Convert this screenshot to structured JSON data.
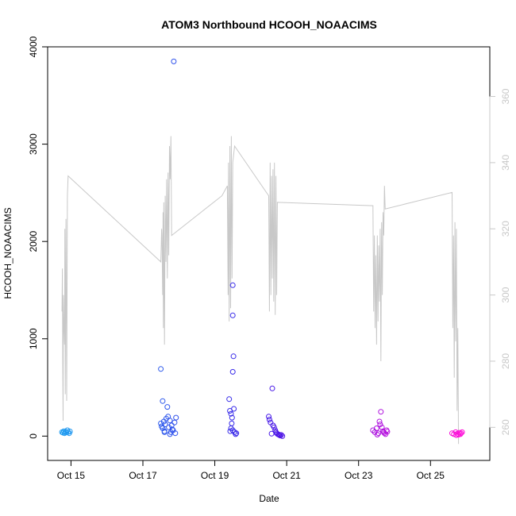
{
  "chart_data": {
    "type": "scatter",
    "title": "ATOM3 Northbound HCOOH_NOAACIMS",
    "xlabel": "Date",
    "ylabel": "HCOOH_NOAACIMS",
    "x_ticks": [
      {
        "label": "Oct 15",
        "day": 15
      },
      {
        "label": "Oct 17",
        "day": 17
      },
      {
        "label": "Oct 19",
        "day": 19
      },
      {
        "label": "Oct 21",
        "day": 21
      },
      {
        "label": "Oct 23",
        "day": 23
      },
      {
        "label": "Oct 25",
        "day": 25
      }
    ],
    "xlim": [
      14.35,
      26.65
    ],
    "ylim": [
      -250,
      4000
    ],
    "y_ticks": [
      0,
      1000,
      2000,
      3000,
      4000
    ],
    "y2lim": [
      250,
      375
    ],
    "y2_ticks": [
      260,
      280,
      300,
      320,
      340,
      360
    ],
    "grid": false,
    "scatter_colors": {
      "start": "#1e9cf0",
      "mid": "#3d17e8",
      "end": "#ff10d8"
    },
    "line_color": "#c8c8c8",
    "series": [
      {
        "kind": "scatter",
        "points": [
          [
            14.75,
            40
          ],
          [
            14.78,
            35
          ],
          [
            14.8,
            50
          ],
          [
            14.82,
            30
          ],
          [
            14.85,
            45
          ],
          [
            14.87,
            38
          ],
          [
            14.9,
            60
          ],
          [
            14.92,
            42
          ],
          [
            14.95,
            30
          ],
          [
            14.97,
            48
          ],
          [
            17.5,
            690
          ],
          [
            17.55,
            360
          ],
          [
            17.5,
            130
          ],
          [
            17.52,
            100
          ],
          [
            17.55,
            80
          ],
          [
            17.58,
            150
          ],
          [
            17.6,
            50
          ],
          [
            17.62,
            120
          ],
          [
            17.65,
            180
          ],
          [
            17.68,
            300
          ],
          [
            17.7,
            200
          ],
          [
            17.72,
            90
          ],
          [
            17.75,
            160
          ],
          [
            17.78,
            40
          ],
          [
            17.8,
            110
          ],
          [
            17.82,
            70
          ],
          [
            17.84,
            60
          ],
          [
            17.86,
            3850
          ],
          [
            17.88,
            140
          ],
          [
            17.9,
            30
          ],
          [
            17.92,
            190
          ],
          [
            17.75,
            20
          ],
          [
            17.6,
            40
          ],
          [
            19.4,
            380
          ],
          [
            19.42,
            260
          ],
          [
            19.45,
            230
          ],
          [
            19.48,
            190
          ],
          [
            19.5,
            1550
          ],
          [
            19.5,
            1240
          ],
          [
            19.52,
            820
          ],
          [
            19.5,
            660
          ],
          [
            19.53,
            280
          ],
          [
            19.47,
            130
          ],
          [
            19.45,
            80
          ],
          [
            19.5,
            60
          ],
          [
            19.55,
            40
          ],
          [
            19.58,
            20
          ],
          [
            19.6,
            30
          ],
          [
            19.43,
            50
          ],
          [
            20.5,
            200
          ],
          [
            20.52,
            170
          ],
          [
            20.55,
            140
          ],
          [
            20.6,
            490
          ],
          [
            20.62,
            110
          ],
          [
            20.65,
            90
          ],
          [
            20.68,
            60
          ],
          [
            20.7,
            40
          ],
          [
            20.72,
            30
          ],
          [
            20.75,
            20
          ],
          [
            20.78,
            15
          ],
          [
            20.8,
            10
          ],
          [
            20.82,
            5
          ],
          [
            20.85,
            12
          ],
          [
            20.88,
            0
          ],
          [
            20.58,
            25
          ],
          [
            23.4,
            60
          ],
          [
            23.45,
            40
          ],
          [
            23.5,
            80
          ],
          [
            23.55,
            30
          ],
          [
            23.6,
            120
          ],
          [
            23.62,
            250
          ],
          [
            23.65,
            90
          ],
          [
            23.68,
            50
          ],
          [
            23.7,
            40
          ],
          [
            23.72,
            30
          ],
          [
            23.75,
            20
          ],
          [
            23.78,
            60
          ],
          [
            23.8,
            45
          ],
          [
            23.58,
            150
          ],
          [
            23.52,
            15
          ],
          [
            25.6,
            30
          ],
          [
            25.65,
            20
          ],
          [
            25.7,
            40
          ],
          [
            25.72,
            10
          ],
          [
            25.75,
            25
          ],
          [
            25.78,
            15
          ],
          [
            25.8,
            35
          ],
          [
            25.83,
            20
          ],
          [
            25.85,
            30
          ],
          [
            25.88,
            40
          ]
        ]
      },
      {
        "kind": "line",
        "axis": "right",
        "points": [
          [
            14.75,
            295
          ],
          [
            14.76,
            308
          ],
          [
            14.77,
            280
          ],
          [
            14.78,
            262
          ],
          [
            14.79,
            300
          ],
          [
            14.8,
            292
          ],
          [
            14.82,
            285
          ],
          [
            14.83,
            320
          ],
          [
            14.84,
            270
          ],
          [
            14.86,
            323
          ],
          [
            14.88,
            268
          ],
          [
            14.9,
            330
          ],
          [
            14.92,
            336
          ],
          [
            17.5,
            310
          ],
          [
            17.52,
            320
          ],
          [
            17.53,
            318
          ],
          [
            17.55,
            300
          ],
          [
            17.56,
            325
          ],
          [
            17.57,
            290
          ],
          [
            17.58,
            328
          ],
          [
            17.6,
            285
          ],
          [
            17.62,
            330
          ],
          [
            17.64,
            310
          ],
          [
            17.66,
            335
          ],
          [
            17.68,
            305
          ],
          [
            17.7,
            337
          ],
          [
            17.72,
            312
          ],
          [
            17.74,
            345
          ],
          [
            17.76,
            335
          ],
          [
            17.78,
            348
          ],
          [
            17.8,
            318
          ],
          [
            19.2,
            330
          ],
          [
            19.35,
            333
          ],
          [
            19.37,
            300
          ],
          [
            19.38,
            340
          ],
          [
            19.4,
            292
          ],
          [
            19.42,
            345
          ],
          [
            19.44,
            296
          ],
          [
            19.46,
            348
          ],
          [
            19.48,
            305
          ],
          [
            19.5,
            340
          ],
          [
            19.55,
            345
          ],
          [
            20.5,
            330
          ],
          [
            20.52,
            295
          ],
          [
            20.54,
            340
          ],
          [
            20.56,
            300
          ],
          [
            20.58,
            336
          ],
          [
            20.6,
            305
          ],
          [
            20.62,
            338
          ],
          [
            20.64,
            298
          ],
          [
            20.66,
            340
          ],
          [
            20.68,
            294
          ],
          [
            20.7,
            336
          ],
          [
            20.72,
            300
          ],
          [
            20.74,
            328
          ],
          [
            23.4,
            327
          ],
          [
            23.42,
            295
          ],
          [
            23.44,
            318
          ],
          [
            23.46,
            290
          ],
          [
            23.48,
            312
          ],
          [
            23.5,
            285
          ],
          [
            23.52,
            318
          ],
          [
            23.54,
            292
          ],
          [
            23.56,
            315
          ],
          [
            23.58,
            298
          ],
          [
            23.6,
            320
          ],
          [
            23.62,
            280
          ],
          [
            23.64,
            322
          ],
          [
            23.66,
            300
          ],
          [
            23.68,
            325
          ],
          [
            23.7,
            318
          ],
          [
            23.72,
            333
          ],
          [
            23.74,
            326
          ],
          [
            25.6,
            331
          ],
          [
            25.62,
            290
          ],
          [
            25.64,
            318
          ],
          [
            25.66,
            275
          ],
          [
            25.68,
            322
          ],
          [
            25.7,
            286
          ],
          [
            25.72,
            320
          ],
          [
            25.74,
            265
          ],
          [
            25.76,
            290
          ],
          [
            25.78,
            255
          ]
        ]
      }
    ]
  }
}
